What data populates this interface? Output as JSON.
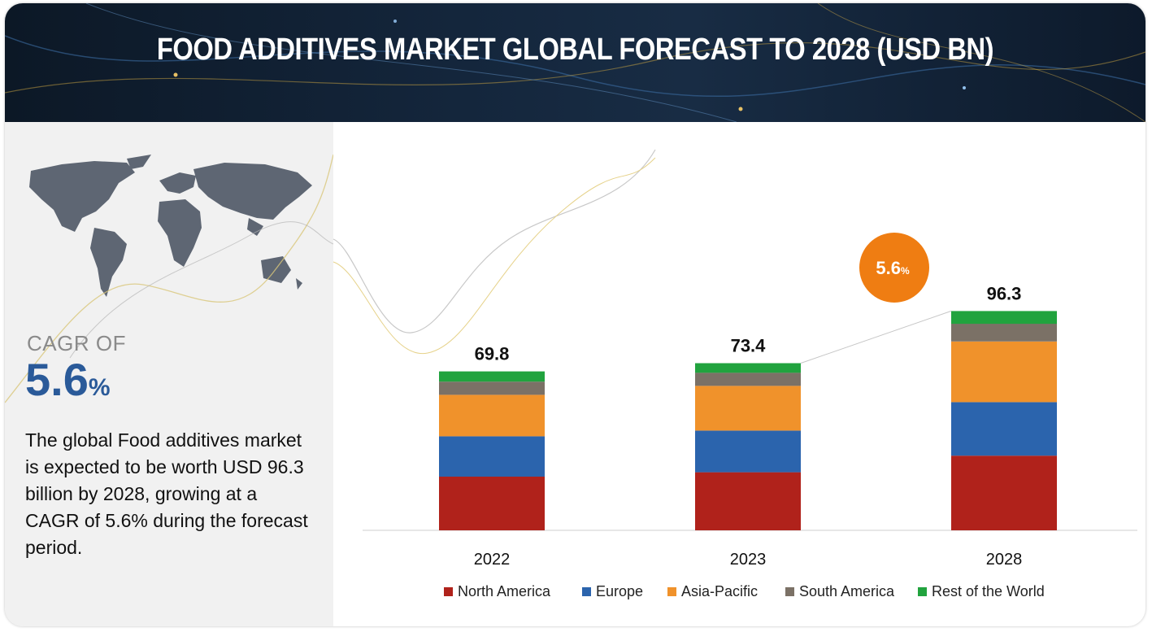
{
  "title": "FOOD ADDITIVES MARKET GLOBAL FORECAST TO 2028 (USD BN)",
  "cagr": {
    "label": "CAGR OF",
    "value": "5.6",
    "unit": "%"
  },
  "description": "The global Food additives market is expected to be worth USD 96.3 billion by 2028, growing at a CAGR of 5.6% during the forecast period.",
  "badge": {
    "value": "5.6",
    "unit": "%"
  },
  "colors": {
    "accent": "#2a5a99",
    "badge": "#ef7d12"
  },
  "chart_data": {
    "type": "bar",
    "stacked": true,
    "categories": [
      "2022",
      "2023",
      "2028"
    ],
    "totals": [
      69.8,
      73.4,
      96.3
    ],
    "total_labels": [
      "69.8",
      "73.4",
      "96.3"
    ],
    "series": [
      {
        "name": "North America",
        "color": "#b0221b",
        "values": [
          23.6,
          25.5,
          32.8
        ]
      },
      {
        "name": "Europe",
        "color": "#2b64ad",
        "values": [
          17.7,
          18.3,
          23.5
        ]
      },
      {
        "name": "Asia-Pacific",
        "color": "#f0922b",
        "values": [
          18.2,
          19.6,
          26.6
        ]
      },
      {
        "name": "South America",
        "color": "#7b7166",
        "values": [
          5.8,
          5.8,
          7.8
        ]
      },
      {
        "name": "Rest of the World",
        "color": "#21a33e",
        "values": [
          4.5,
          4.2,
          5.6
        ]
      }
    ],
    "annotation": "5.6%",
    "legend_position": "bottom"
  }
}
